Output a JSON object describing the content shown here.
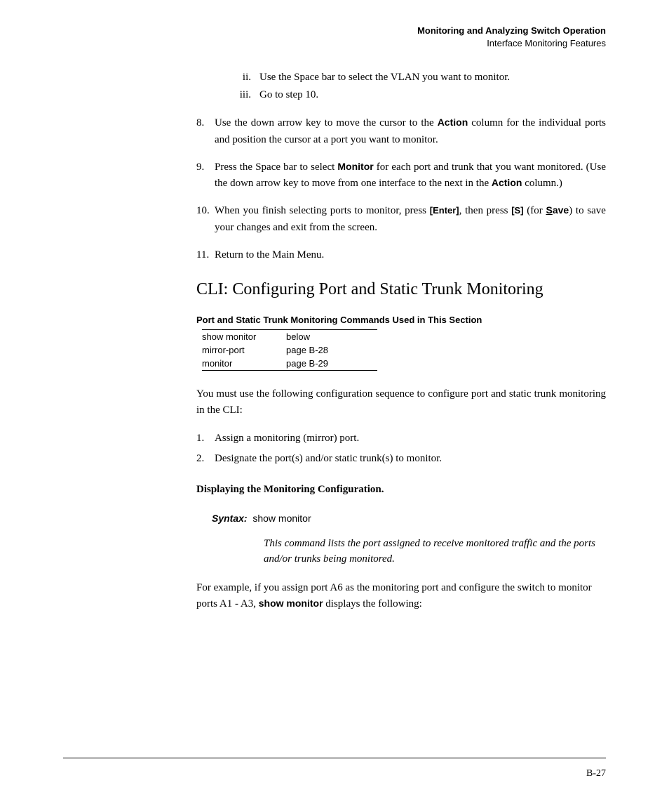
{
  "header": {
    "title": "Monitoring and Analyzing Switch Operation",
    "subtitle": "Interface Monitoring Features"
  },
  "roman_items": [
    {
      "marker": "ii.",
      "text": "Use the Space bar to select the VLAN you want to monitor."
    },
    {
      "marker": "iii.",
      "text": "Go to step 10."
    }
  ],
  "step8": {
    "num": "8.",
    "pre": "Use the down arrow key to move the cursor to the ",
    "bold": "Action",
    "post": " column for the individual ports and position the cursor at a port you want to monitor."
  },
  "step9": {
    "num": "9.",
    "pre": "Press the Space bar to select ",
    "bold1": "Monitor",
    "mid": " for each port and trunk that you want monitored. (Use the down arrow key to move from one interface to the next in the ",
    "bold2": "Action",
    "post": " column.)"
  },
  "step10": {
    "num": "10.",
    "pre": "When you finish selecting ports to monitor, press ",
    "key1": "[Enter]",
    "mid1": ", then press ",
    "key2": "[S]",
    "mid2": " (for ",
    "save_u": "S",
    "save_rest": "ave",
    "post": ") to save your changes and exit from the screen."
  },
  "step11": {
    "num": "11.",
    "text": "Return to the Main Menu."
  },
  "section_heading": "CLI: Configuring Port and Static Trunk Monitoring",
  "table_caption": "Port and Static Trunk Monitoring Commands Used in This Section",
  "table_rows": [
    {
      "cmd": "show monitor",
      "ref": "below"
    },
    {
      "cmd": "mirror-port",
      "ref": "page B-28"
    },
    {
      "cmd": "monitor",
      "ref": "page B-29"
    }
  ],
  "intro_para": "You must use the following configuration sequence to configure port and static trunk monitoring in the CLI:",
  "config_steps": [
    {
      "num": "1.",
      "text": "Assign a monitoring (mirror) port."
    },
    {
      "num": "2.",
      "text": "Designate the port(s) and/or static trunk(s) to monitor."
    }
  ],
  "sub_heading": "Displaying the Monitoring Configuration.",
  "syntax": {
    "label": "Syntax:",
    "command": "show monitor",
    "desc": "This command lists the port assigned to receive monitored traffic and the ports and/or trunks being monitored."
  },
  "example": {
    "pre": "For example, if you assign port A6 as the monitoring port and configure the switch to monitor ports A1 - A3, ",
    "bold": "show monitor",
    "post": " displays the following:"
  },
  "page_number": "B-27"
}
